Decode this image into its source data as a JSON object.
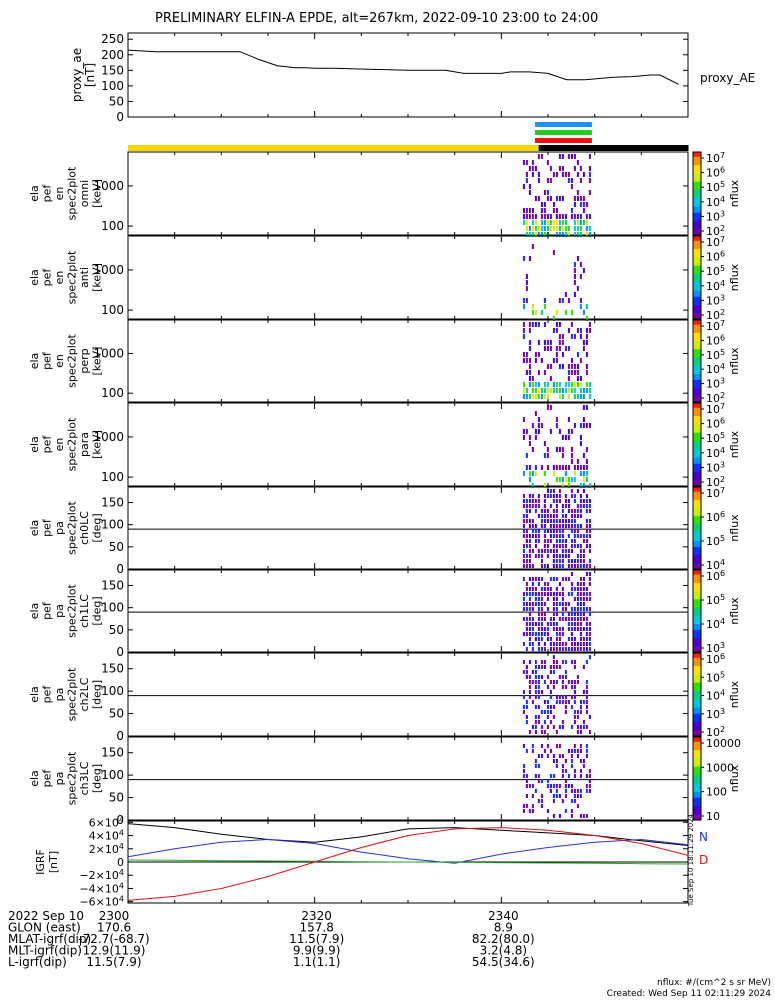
{
  "title": "PRELIMINARY ELFIN-A EPDE, alt=267km, 2022-09-10 23:00 to 24:00",
  "colors": {
    "sun": "#f5d800",
    "shadow": "#000000",
    "bar_blue": "#1e90ff",
    "bar_green": "#22cc22",
    "bar_red": "#ee1111",
    "bx": "#2233cc",
    "by": "#22aa22",
    "bz": "#dd1111",
    "bmag": "#000000"
  },
  "footer": {
    "units": "nflux: #/(cm^2 s sr MeV)",
    "created": "Created: Wed Sep 11 02:11:29 2024",
    "side_stamp": "Tue Sep 10 18:11:29 2024"
  },
  "chart_data": [
    {
      "type": "line",
      "name": "ae",
      "ylabel": [
        "proxy_ae",
        "[nT]"
      ],
      "series_label": "proxy_AE",
      "yticks": [
        "250",
        "200",
        "150",
        "100",
        "50",
        "0"
      ],
      "ylim": [
        0,
        270
      ],
      "x_minutes": [
        0,
        3,
        12,
        14,
        16,
        18,
        19,
        20,
        22,
        30,
        34,
        36,
        38,
        40,
        41,
        43,
        45,
        47,
        49,
        52,
        54,
        56,
        57,
        59
      ],
      "values": [
        215,
        210,
        210,
        185,
        165,
        158,
        158,
        157,
        157,
        150,
        150,
        140,
        140,
        140,
        145,
        145,
        140,
        120,
        120,
        128,
        130,
        135,
        135,
        105
      ]
    },
    {
      "type": "bar",
      "name": "sunlight",
      "states": [
        "sun",
        "sun",
        "sun",
        "sun",
        "sun",
        "sun",
        "sun",
        "sun",
        "sun",
        "sun",
        "sun",
        "sun",
        "sun",
        "sun",
        "sun",
        "sun",
        "sun",
        "sun",
        "sun",
        "sun",
        "sun",
        "sun",
        "sun",
        "sun",
        "sun",
        "sun",
        "sun",
        "sun",
        "sun",
        "sun",
        "sun",
        "sun",
        "sun",
        "sun",
        "sun",
        "sun",
        "sun",
        "sun",
        "sun",
        "sun",
        "sun",
        "sun",
        "sun",
        "sun",
        "shadow",
        "shadow",
        "shadow",
        "shadow",
        "shadow",
        "shadow",
        "shadow",
        "shadow",
        "shadow",
        "shadow",
        "shadow",
        "shadow",
        "shadow",
        "shadow",
        "shadow",
        "shadow"
      ],
      "coverage_minutes": [
        43.6,
        49.7
      ]
    },
    {
      "type": "heatmap",
      "name": "en_omni",
      "ylabel": [
        "ela",
        "pef",
        "en",
        "spec2plot",
        "omni",
        "[keV]"
      ],
      "yticks": [
        "1000",
        "100"
      ],
      "cbar_ticks": [
        "10^7",
        "10^6",
        "10^5",
        "10^4",
        "10^3",
        "10^2"
      ],
      "cbar_label": "nflux",
      "density": "high"
    },
    {
      "type": "heatmap",
      "name": "en_anti",
      "ylabel": [
        "ela",
        "pef",
        "en",
        "spec2plot",
        "anti",
        "[keV]"
      ],
      "yticks": [
        "1000",
        "100"
      ],
      "cbar_ticks": [
        "10^7",
        "10^6",
        "10^5",
        "10^4",
        "10^3",
        "10^2"
      ],
      "cbar_label": "nflux",
      "density": "low"
    },
    {
      "type": "heatmap",
      "name": "en_perp",
      "ylabel": [
        "ela",
        "pef",
        "en",
        "spec2plot",
        "perp",
        "[keV]"
      ],
      "yticks": [
        "1000",
        "100"
      ],
      "cbar_ticks": [
        "10^7",
        "10^6",
        "10^5",
        "10^4",
        "10^3",
        "10^2"
      ],
      "cbar_label": "nflux",
      "density": "high"
    },
    {
      "type": "heatmap",
      "name": "en_para",
      "ylabel": [
        "ela",
        "pef",
        "en",
        "spec2plot",
        "para",
        "[keV]"
      ],
      "yticks": [
        "1000",
        "100"
      ],
      "cbar_ticks": [
        "10^7",
        "10^6",
        "10^5",
        "10^4",
        "10^3",
        "10^2"
      ],
      "cbar_label": "nflux",
      "density": "mid"
    },
    {
      "type": "heatmap",
      "name": "pa_ch0",
      "ylabel": [
        "ela",
        "pef",
        "pa",
        "spec2plot",
        "ch0LC",
        "[deg]"
      ],
      "yticks": [
        "150",
        "100",
        "50",
        "0"
      ],
      "cbar_ticks": [
        "10^7",
        "10^6",
        "10^5",
        "10^4"
      ],
      "cbar_label": "nflux",
      "density": "pa_high"
    },
    {
      "type": "heatmap",
      "name": "pa_ch1",
      "ylabel": [
        "ela",
        "pef",
        "pa",
        "spec2plot",
        "ch1LC",
        "[deg]"
      ],
      "yticks": [
        "150",
        "100",
        "50",
        "0"
      ],
      "cbar_ticks": [
        "10^6",
        "10^5",
        "10^4",
        "10^3"
      ],
      "cbar_label": "nflux",
      "density": "pa_high"
    },
    {
      "type": "heatmap",
      "name": "pa_ch2",
      "ylabel": [
        "ela",
        "pef",
        "pa",
        "spec2plot",
        "ch2LC",
        "[deg]"
      ],
      "yticks": [
        "150",
        "100",
        "50",
        "0"
      ],
      "cbar_ticks": [
        "10^6",
        "10^5",
        "10^4",
        "10^3",
        "10^2"
      ],
      "cbar_label": "nflux",
      "density": "pa_mid"
    },
    {
      "type": "heatmap",
      "name": "pa_ch3",
      "ylabel": [
        "ela",
        "pef",
        "pa",
        "spec2plot",
        "ch3LC",
        "[deg]"
      ],
      "yticks": [
        "150",
        "100",
        "50",
        "0"
      ],
      "cbar_ticks": [
        "10000",
        "1000",
        "100",
        "10"
      ],
      "cbar_label": "nflux",
      "density": "pa_low"
    },
    {
      "type": "line",
      "name": "igrf",
      "ylabel": [
        "IGRF",
        "[nT]"
      ],
      "yticks": [
        "6×10^4",
        "4×10^4",
        "2×10^4",
        "0",
        "−2×10^4",
        "−4×10^4",
        "−6×10^4"
      ],
      "ylim": [
        -62000,
        62000
      ],
      "legend": [
        "N",
        "D"
      ],
      "x_minutes": [
        0,
        5,
        10,
        15,
        20,
        25,
        30,
        35,
        40,
        45,
        50,
        55,
        60
      ],
      "series": [
        {
          "id": "bmag",
          "values": [
            58000,
            52000,
            42000,
            34000,
            30000,
            38000,
            50000,
            52000,
            48000,
            44000,
            40000,
            32000,
            25000
          ]
        },
        {
          "id": "bx",
          "values": [
            8000,
            20000,
            30000,
            34000,
            28000,
            15000,
            5000,
            -2000,
            12000,
            22000,
            30000,
            34000,
            26000
          ]
        },
        {
          "id": "by",
          "values": [
            3000,
            2500,
            2000,
            1500,
            1000,
            500,
            0,
            -500,
            -1000,
            -1500,
            -2000,
            -2500,
            -3000
          ]
        },
        {
          "id": "bz",
          "values": [
            -58000,
            -52000,
            -40000,
            -22000,
            0,
            22000,
            40000,
            50000,
            52000,
            48000,
            40000,
            28000,
            10000
          ]
        }
      ]
    }
  ],
  "xaxis": {
    "ticks": [
      {
        "min": 0,
        "label": "2300"
      },
      {
        "min": 20,
        "label": "2320"
      },
      {
        "min": 40,
        "label": "2340"
      }
    ],
    "rows": [
      {
        "label": "2022 Sep 10",
        "vals": [
          "2300",
          "2320",
          "2340"
        ]
      },
      {
        "label": "GLON (east)",
        "vals": [
          "170.6",
          "157.8",
          "8.9"
        ]
      },
      {
        "label": "MLAT-igrf(dip)",
        "vals": [
          "-72.7(-68.7)",
          "11.5(7.9)",
          "82.2(80.0)"
        ]
      },
      {
        "label": "MLT-igrf(dip)",
        "vals": [
          "12.9(11.9)",
          "9.9(9.9)",
          "3.2(4.8)"
        ]
      },
      {
        "label": "L-igrf(dip)",
        "vals": [
          "11.5(7.9)",
          "1.1(1.1)",
          "54.5(34.6)"
        ]
      }
    ]
  }
}
